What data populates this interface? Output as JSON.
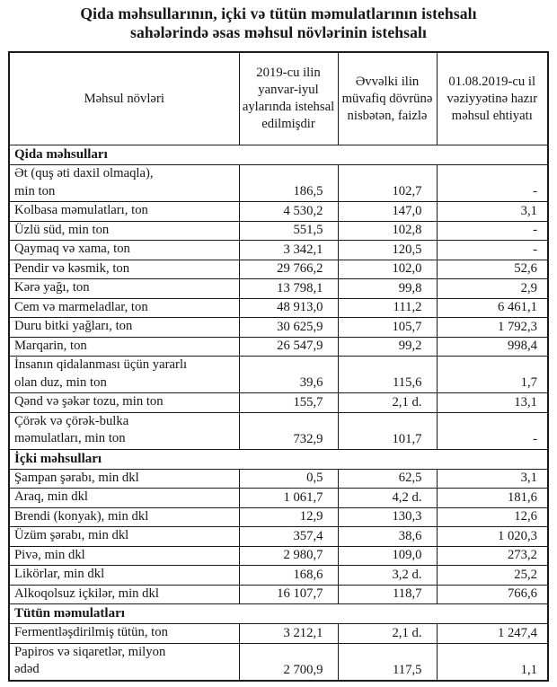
{
  "title": "Qida məhsullarının, içki və tütün məmulatlarının istehsalı\nsahələrində əsas məhsul növlərinin istehsalı",
  "table": {
    "columns": [
      "Məhsul növləri",
      "2019-cu ilin yanvar-iyul aylarında istehsal edilmişdir",
      "Əvvəlki ilin müvafiq dövrünə nisbətən, faizlə",
      "01.08.2019-cu il vəziyyətinə hazır məhsul ehtiyatı"
    ],
    "sections": [
      {
        "label": "Qida məhsulları",
        "rows": [
          {
            "product": "Ət (quş əti daxil olmaqla),\nmin ton",
            "produced": "186,5",
            "vs_prev_year": "102,7",
            "stock": "-"
          },
          {
            "product": "Kolbasa məmulatları, ton",
            "produced": "4 530,2",
            "vs_prev_year": "147,0",
            "stock": "3,1"
          },
          {
            "product": "Üzlü süd, min ton",
            "produced": "551,5",
            "vs_prev_year": "102,8",
            "stock": "-"
          },
          {
            "product": "Qaymaq və xama, ton",
            "produced": "3 342,1",
            "vs_prev_year": "120,5",
            "stock": "-"
          },
          {
            "product": "Pendir və kəsmik, ton",
            "produced": "29 766,2",
            "vs_prev_year": "102,0",
            "stock": "52,6"
          },
          {
            "product": "Kərə yağı, ton",
            "produced": "13 798,1",
            "vs_prev_year": "99,8",
            "stock": "2,9"
          },
          {
            "product": "Cem və marmeladlar, ton",
            "produced": "48 913,0",
            "vs_prev_year": "111,2",
            "stock": "6 461,1"
          },
          {
            "product": "Duru bitki yağları, ton",
            "produced": "30 625,9",
            "vs_prev_year": "105,7",
            "stock": "1 792,3"
          },
          {
            "product": "Marqarin, ton",
            "produced": "26 547,9",
            "vs_prev_year": "99,2",
            "stock": "998,4"
          },
          {
            "product": "İnsanın qidalanması üçün yararlı\nolan duz, min ton",
            "produced": "39,6",
            "vs_prev_year": "115,6",
            "stock": "1,7"
          },
          {
            "product": "Qənd və şəkər tozu, min ton",
            "produced": "155,7",
            "vs_prev_year": "2,1 d.",
            "stock": "13,1"
          },
          {
            "product": "Çörək və çörək-bulka\nməmulatları, min ton",
            "produced": "732,9",
            "vs_prev_year": "101,7",
            "stock": "-"
          }
        ]
      },
      {
        "label": "İçki məhsulları",
        "rows": [
          {
            "product": "Şampan şərabı, min dkl",
            "produced": "0,5",
            "vs_prev_year": "62,5",
            "stock": "3,1"
          },
          {
            "product": "Araq, min dkl",
            "produced": "1 061,7",
            "vs_prev_year": "4,2 d.",
            "stock": "181,6"
          },
          {
            "product": "Brendi (konyak), min dkl",
            "produced": "12,9",
            "vs_prev_year": "130,3",
            "stock": "12,6"
          },
          {
            "product": "Üzüm şərabı, min dkl",
            "produced": "357,4",
            "vs_prev_year": "38,6",
            "stock": "1 020,3"
          },
          {
            "product": "Pivə, min dkl",
            "produced": "2 980,7",
            "vs_prev_year": "109,0",
            "stock": "273,2"
          },
          {
            "product": "Likörlar, min dkl",
            "produced": "168,6",
            "vs_prev_year": "3,2 d.",
            "stock": "25,2"
          },
          {
            "product": "Alkoqolsuz içkilər, min dkl",
            "produced": "16 107,7",
            "vs_prev_year": "118,7",
            "stock": "766,6"
          }
        ]
      },
      {
        "label": "Tütün məmulatları",
        "rows": [
          {
            "product": "Fermentləşdirilmiş tütün, ton",
            "produced": "3 212,1",
            "vs_prev_year": "2,1 d.",
            "stock": "1 247,4"
          },
          {
            "product": "Papiros və siqaretlər, milyon\nədəd",
            "produced": "2 700,9",
            "vs_prev_year": "117,5",
            "stock": "1,1"
          }
        ]
      }
    ]
  }
}
